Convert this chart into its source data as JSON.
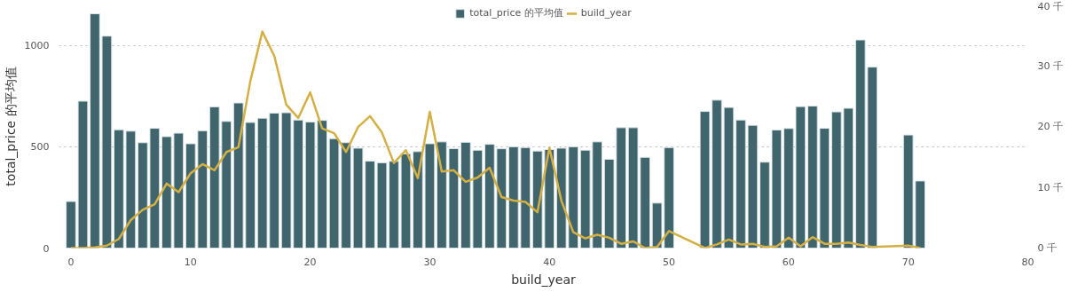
{
  "chart_data": {
    "type": "bar",
    "xlabel": "build_year",
    "ylabel": "total_price 的平均值",
    "x": [
      0,
      1,
      2,
      3,
      4,
      5,
      6,
      7,
      8,
      9,
      10,
      11,
      12,
      13,
      14,
      15,
      16,
      17,
      18,
      19,
      20,
      21,
      22,
      23,
      24,
      25,
      26,
      27,
      28,
      29,
      30,
      31,
      32,
      33,
      34,
      35,
      36,
      37,
      38,
      39,
      40,
      41,
      42,
      43,
      44,
      45,
      46,
      47,
      48,
      49,
      50,
      53,
      54,
      55,
      56,
      57,
      58,
      59,
      60,
      61,
      62,
      63,
      64,
      65,
      66,
      67,
      70,
      71
    ],
    "series": [
      {
        "name": "total_price 的平均值",
        "color": "#41656d",
        "values": [
          230,
          725,
          1156,
          1046,
          584,
          577,
          520,
          591,
          550,
          567,
          515,
          579,
          697,
          625,
          716,
          620,
          641,
          666,
          668,
          632,
          622,
          630,
          540,
          520,
          493,
          429,
          421,
          428,
          465,
          476,
          515,
          524,
          491,
          522,
          483,
          512,
          490,
          500,
          496,
          479,
          486,
          493,
          500,
          483,
          524,
          438,
          594,
          594,
          448,
          222,
          496,
          674,
          730,
          694,
          632,
          606,
          424,
          583,
          590,
          698,
          701,
          591,
          672,
          690,
          1027,
          893,
          558,
          331
        ]
      },
      {
        "name": "build_year",
        "type": "line",
        "axis": "y2",
        "color": "#d4b044",
        "x": [
          0,
          1,
          2,
          3,
          4,
          5,
          6,
          7,
          8,
          9,
          10,
          11,
          12,
          13,
          14,
          15,
          16,
          17,
          18,
          19,
          20,
          21,
          22,
          23,
          24,
          25,
          26,
          27,
          28,
          29,
          30,
          31,
          32,
          33,
          34,
          35,
          36,
          37,
          38,
          39,
          40,
          41,
          42,
          43,
          44,
          45,
          46,
          47,
          48,
          49,
          50,
          53,
          54,
          55,
          56,
          57,
          58,
          59,
          60,
          61,
          62,
          63,
          64,
          65,
          66,
          67,
          70,
          71
        ],
        "values": [
          0,
          0,
          0.1,
          0.4,
          1.5,
          4.6,
          6.3,
          7.2,
          10.6,
          9.2,
          12.3,
          13.8,
          12.8,
          15.8,
          16.6,
          27.5,
          35.6,
          31.6,
          23.6,
          21.4,
          25.6,
          19.7,
          18.9,
          15.8,
          19.9,
          21.7,
          19.0,
          14.0,
          16.1,
          11.5,
          22.4,
          12.6,
          12.8,
          10.9,
          11.6,
          13.2,
          8.4,
          7.8,
          7.6,
          5.9,
          16.5,
          7.8,
          2.6,
          1.6,
          2.2,
          1.7,
          0.7,
          1.1,
          0,
          0.2,
          2.8,
          0,
          0.6,
          1.4,
          0.6,
          0.7,
          0.2,
          0.3,
          1.7,
          0.3,
          1.8,
          0.7,
          0.7,
          0.9,
          0.5,
          0.2,
          0.4,
          0
        ]
      }
    ],
    "xlim": [
      -1,
      80
    ],
    "xticks": [
      0,
      10,
      20,
      30,
      40,
      50,
      60,
      70,
      80
    ],
    "ylim": [
      0,
      1200
    ],
    "yticks": [
      0,
      500,
      1000
    ],
    "y2lim": [
      0,
      40
    ],
    "y2ticks": [
      {
        "value": 0,
        "label": "0 千"
      },
      {
        "value": 10,
        "label": "10 千"
      },
      {
        "value": 20,
        "label": "20 千"
      },
      {
        "value": 30,
        "label": "30 千"
      },
      {
        "value": 40,
        "label": "40 千"
      }
    ],
    "grid": "y",
    "legend": "top"
  }
}
